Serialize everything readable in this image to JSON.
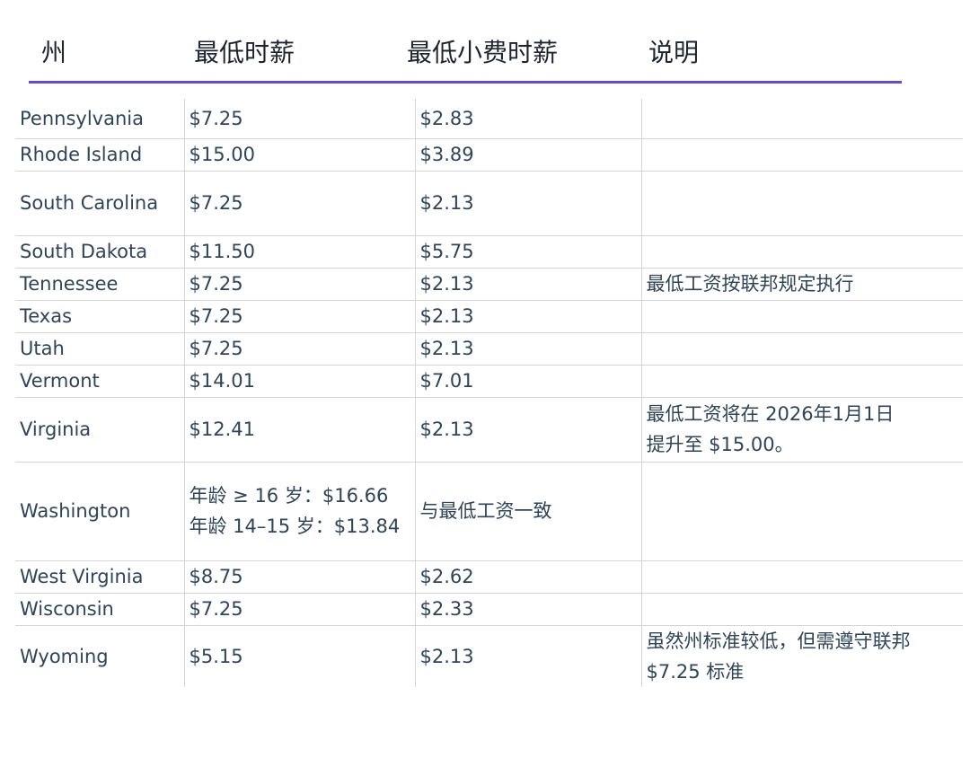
{
  "header": {
    "state": "州",
    "min_wage": "最低时薪",
    "tipped_wage": "最低小费时薪",
    "notes": "说明"
  },
  "rows": [
    {
      "state": "Pennsylvania",
      "min_wage": [
        "$7.25"
      ],
      "tipped_wage": "$2.83",
      "notes": []
    },
    {
      "state": "Rhode Island",
      "min_wage": [
        "$15.00"
      ],
      "tipped_wage": "$3.89",
      "notes": []
    },
    {
      "state": "South Carolina",
      "min_wage": [
        "$7.25"
      ],
      "tipped_wage": "$2.13",
      "notes": []
    },
    {
      "state": "South Dakota",
      "min_wage": [
        "$11.50"
      ],
      "tipped_wage": "$5.75",
      "notes": []
    },
    {
      "state": "Tennessee",
      "min_wage": [
        "$7.25"
      ],
      "tipped_wage": "$2.13",
      "notes": [
        "最低工资按联邦规定执行"
      ]
    },
    {
      "state": "Texas",
      "min_wage": [
        "$7.25"
      ],
      "tipped_wage": "$2.13",
      "notes": []
    },
    {
      "state": "Utah",
      "min_wage": [
        "$7.25"
      ],
      "tipped_wage": "$2.13",
      "notes": []
    },
    {
      "state": "Vermont",
      "min_wage": [
        "$14.01"
      ],
      "tipped_wage": "$7.01",
      "notes": []
    },
    {
      "state": "Virginia",
      "min_wage": [
        "$12.41"
      ],
      "tipped_wage": "$2.13",
      "notes": [
        "最低工资将在 2026年1月1日",
        "提升至 $15.00。"
      ]
    },
    {
      "state": "Washington",
      "min_wage": [
        "年龄 ≥ 16 岁：$16.66",
        "年龄 14–15 岁：$13.84"
      ],
      "tipped_wage": "与最低工资一致",
      "notes": []
    },
    {
      "state": "West Virginia",
      "min_wage": [
        "$8.75"
      ],
      "tipped_wage": "$2.62",
      "notes": []
    },
    {
      "state": "Wisconsin",
      "min_wage": [
        "$7.25"
      ],
      "tipped_wage": "$2.33",
      "notes": []
    },
    {
      "state": "Wyoming",
      "min_wage": [
        "$5.15"
      ],
      "tipped_wage": "$2.13",
      "notes": [
        "虽然州标准较低，但需遵守联邦",
        "$7.25 标准"
      ]
    }
  ]
}
